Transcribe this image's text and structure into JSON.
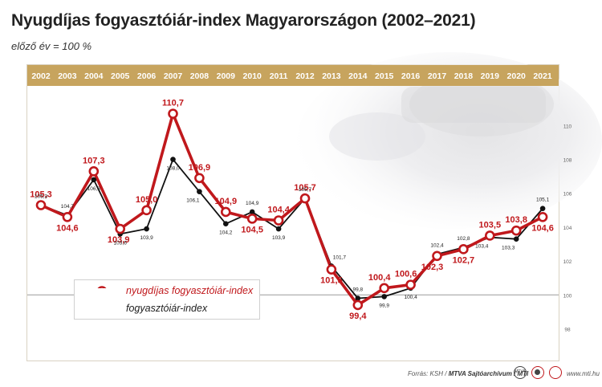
{
  "header": {
    "title": "Nyugdíjas fogyasztóiár-index Magyarországon (2002–2021)",
    "subtitle": "előző év = 100 %"
  },
  "footer": {
    "source_prefix": "Forrás: KSH / ",
    "source_bold": "MTVA Sajtóarchívum / MTI",
    "url": "www.mti.hu",
    "logo_text": "MTVA"
  },
  "colors": {
    "pensioner": "#c0181c",
    "consumer": "#111111",
    "year_band": "#c7a45e",
    "year_text": "#ffffff"
  },
  "chart_data": {
    "type": "line",
    "x": [
      "2002",
      "2003",
      "2004",
      "2005",
      "2006",
      "2007",
      "2008",
      "2009",
      "2010",
      "2011",
      "2012",
      "2013",
      "2014",
      "2015",
      "2016",
      "2017",
      "2018",
      "2019",
      "2020",
      "2021"
    ],
    "series": [
      {
        "name": "nyugdíjas fogyasztóiár-index",
        "values": [
          105.3,
          104.6,
          107.3,
          103.9,
          105.0,
          110.7,
          106.9,
          104.9,
          104.5,
          104.4,
          105.7,
          101.5,
          99.4,
          100.4,
          100.6,
          102.3,
          102.7,
          103.5,
          103.8,
          104.6
        ],
        "labels": [
          "105,3",
          "104,6",
          "107,3",
          "103,9",
          "105,0",
          "110,7",
          "106,9",
          "104,9",
          "104,5",
          "104,4",
          "105,7",
          "101,5",
          "99,4",
          "100,4",
          "100,6",
          "102,3",
          "102,7",
          "103,5",
          "103,8",
          "104,6"
        ]
      },
      {
        "name": "fogyasztóiár-index",
        "values": [
          105.3,
          104.7,
          106.8,
          103.6,
          103.9,
          108.0,
          106.1,
          104.2,
          104.9,
          103.9,
          105.7,
          101.7,
          99.8,
          99.9,
          100.4,
          102.4,
          102.8,
          103.4,
          103.3,
          105.1
        ],
        "labels": [
          "105,3",
          "104,7",
          "106,8",
          "103,6",
          "103,9",
          "108,0",
          "106,1",
          "104,2",
          "104,9",
          "103,9",
          "105,7",
          "101,7",
          "99,8",
          "99,9",
          "100,4",
          "102,4",
          "102,8",
          "103,4",
          "103,3",
          "105,1"
        ]
      }
    ],
    "y_ticks": [
      98,
      100,
      102,
      104,
      106,
      108,
      110
    ],
    "y_tick_labels": [
      "98",
      "100",
      "102",
      "104",
      "106",
      "108",
      "110"
    ],
    "ylim": [
      97.5,
      112.2
    ],
    "reference_line": 100,
    "grid": false,
    "legend_position": "bottom-left"
  }
}
